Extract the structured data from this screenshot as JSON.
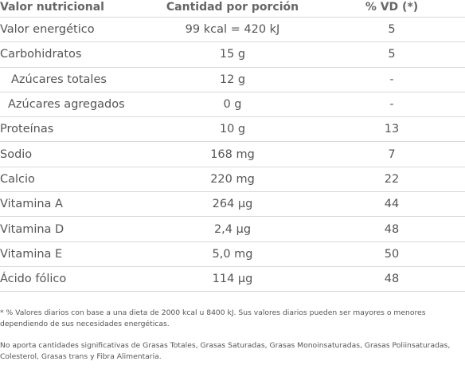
{
  "header": {
    "col1": "Valor nutricional",
    "col2": "Cantidad por porción",
    "col3": "% VD (*)"
  },
  "rows": [
    {
      "name": "Valor energético",
      "amount": "99 kcal = 420 kJ",
      "vd": "5"
    },
    {
      "name": "Carbohidratos",
      "amount": "15 g",
      "vd": "5"
    },
    {
      "name": "Azúcares totales",
      "amount": "12 g",
      "vd": "-"
    },
    {
      "name": "Azúcares agregados",
      "amount": "0 g",
      "vd": "-"
    },
    {
      "name": "Proteínas",
      "amount": "10 g",
      "vd": "13"
    },
    {
      "name": "Sodio",
      "amount": "168 mg",
      "vd": "7"
    },
    {
      "name": "Calcio",
      "amount": "220 mg",
      "vd": "22"
    },
    {
      "name": "Vitamina A",
      "amount": "264 µg",
      "vd": "44"
    },
    {
      "name": "Vitamina D",
      "amount": "2,4 µg",
      "vd": "48"
    },
    {
      "name": "Vitamina E",
      "amount": "5,0 mg",
      "vd": "50"
    },
    {
      "name": "Ácido fólico",
      "amount": "114 µg",
      "vd": "48"
    }
  ],
  "notes": {
    "daily_values": "* % Valores diarios con base a una dieta de 2000 kcal u 8400 kJ. Sus valores diarios pueden ser mayores o menores dependiendo de sus necesidades energéticas.",
    "no_significant": "No aporta cantidades significativas de Grasas Totales, Grasas Saturadas, Grasas Monoinsaturadas, Grasas Poliinsaturadas, Colesterol, Grasas trans y Fibra Alimentaria."
  }
}
